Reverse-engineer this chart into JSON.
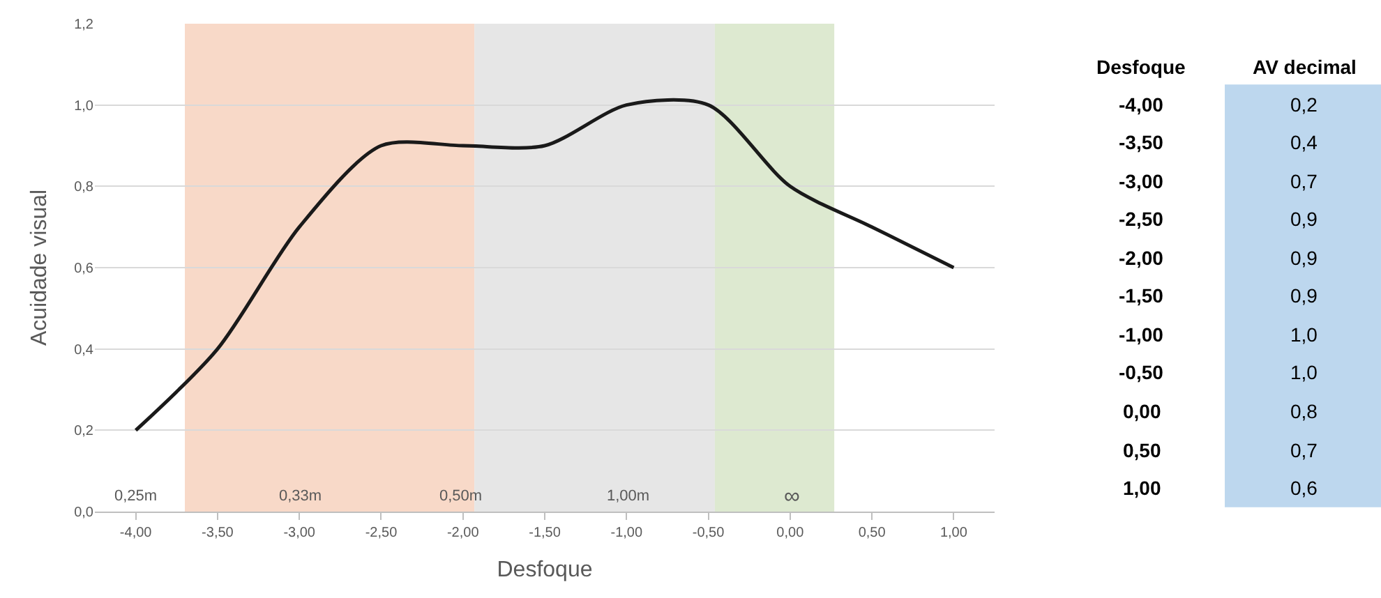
{
  "chart_data": {
    "type": "line",
    "xlabel": "Desfoque",
    "ylabel": "Acuidade visual",
    "x": [
      -4.0,
      -3.5,
      -3.0,
      -2.5,
      -2.0,
      -1.5,
      -1.0,
      -0.5,
      0.0,
      0.5,
      1.0
    ],
    "series": [
      {
        "color": "#1a1a1a",
        "values": [
          0.2,
          0.4,
          0.7,
          0.9,
          0.9,
          0.9,
          1.0,
          1.0,
          0.8,
          0.7,
          0.6
        ]
      }
    ],
    "value_labels": [
      "0,2",
      "0,4",
      "0,7",
      "0,9",
      "0,9",
      "0,9",
      "1,0",
      "1,0",
      "0,8",
      "0,7",
      "0,6"
    ],
    "xlim": [
      -4.25,
      1.25
    ],
    "xticks": [
      {
        "value": -4.0,
        "label": "-4,00"
      },
      {
        "value": -3.5,
        "label": "-3,50"
      },
      {
        "value": -3.0,
        "label": "-3,00"
      },
      {
        "value": -2.5,
        "label": "-2,50"
      },
      {
        "value": -2.0,
        "label": "-2,00"
      },
      {
        "value": -1.5,
        "label": "-1,50"
      },
      {
        "value": -1.0,
        "label": "-1,00"
      },
      {
        "value": -0.5,
        "label": "-0,50"
      },
      {
        "value": 0.0,
        "label": "0,00"
      },
      {
        "value": 0.5,
        "label": "0,50"
      },
      {
        "value": 1.0,
        "label": "1,00"
      }
    ],
    "ylim": [
      0,
      1.2
    ],
    "yticks": [
      {
        "value": 0,
        "label": "0,0"
      },
      {
        "value": 0.2,
        "label": "0,2"
      },
      {
        "value": 0.4,
        "label": "0,4"
      },
      {
        "value": 0.6,
        "label": "0,6"
      },
      {
        "value": 0.8,
        "label": "0,8"
      },
      {
        "value": 1.0,
        "label": "1,0"
      },
      {
        "value": 1.2,
        "label": "1,2"
      }
    ],
    "bands": [
      {
        "axis": "x",
        "from": -3.7,
        "to": -1.93,
        "color": "#f8d9c8"
      },
      {
        "axis": "x",
        "from": -1.93,
        "to": -0.46,
        "color": "#e6e6e6"
      },
      {
        "axis": "x",
        "from": -0.46,
        "to": 0.27,
        "color": "#dde9d0"
      }
    ],
    "annotations": [
      "0,25m",
      "0,33m",
      "0,50m",
      "1,00m",
      "∞",
      "Desfoque",
      "AV decimal"
    ],
    "grid": "y",
    "marker": "none",
    "line_style": "solid"
  }
}
